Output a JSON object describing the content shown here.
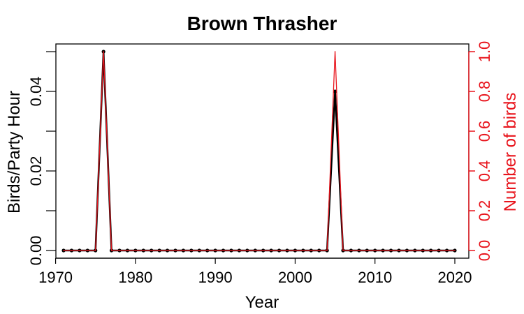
{
  "chart_data": {
    "type": "line",
    "title": "Brown Thrasher",
    "xlabel": "Year",
    "ylabel": "Birds/Party Hour",
    "y2label": "Number of birds",
    "xlim": [
      1971,
      2020
    ],
    "ylim": [
      0,
      0.05
    ],
    "y2lim": [
      0,
      1.0
    ],
    "xticks": [
      "1970",
      "1980",
      "1990",
      "2000",
      "2010",
      "2020"
    ],
    "yticks": [
      "0.00",
      "0.02",
      "0.04"
    ],
    "y2ticks": [
      "0.0",
      "0.2",
      "0.4",
      "0.6",
      "0.8",
      "1.0"
    ],
    "grid": false,
    "series": [
      {
        "axis": "left",
        "color": "#000000",
        "points": [
          [
            1971,
            0
          ],
          [
            1972,
            0
          ],
          [
            1973,
            0
          ],
          [
            1974,
            0
          ],
          [
            1975,
            0
          ],
          [
            1976,
            0.05
          ],
          [
            1977,
            0
          ],
          [
            1978,
            0
          ],
          [
            1979,
            0
          ],
          [
            1980,
            0
          ],
          [
            1981,
            0
          ],
          [
            1982,
            0
          ],
          [
            1983,
            0
          ],
          [
            1984,
            0
          ],
          [
            1985,
            0
          ],
          [
            1986,
            0
          ],
          [
            1987,
            0
          ],
          [
            1988,
            0
          ],
          [
            1989,
            0
          ],
          [
            1990,
            0
          ],
          [
            1991,
            0
          ],
          [
            1992,
            0
          ],
          [
            1993,
            0
          ],
          [
            1994,
            0
          ],
          [
            1995,
            0
          ],
          [
            1996,
            0
          ],
          [
            1997,
            0
          ],
          [
            1998,
            0
          ],
          [
            1999,
            0
          ],
          [
            2000,
            0
          ],
          [
            2001,
            0
          ],
          [
            2002,
            0
          ],
          [
            2003,
            0
          ],
          [
            2004,
            0
          ],
          [
            2005,
            0.04
          ],
          [
            2006,
            0
          ],
          [
            2007,
            0
          ],
          [
            2008,
            0
          ],
          [
            2009,
            0
          ],
          [
            2010,
            0
          ],
          [
            2011,
            0
          ],
          [
            2012,
            0
          ],
          [
            2013,
            0
          ],
          [
            2014,
            0
          ],
          [
            2015,
            0
          ],
          [
            2016,
            0
          ],
          [
            2017,
            0
          ],
          [
            2018,
            0
          ],
          [
            2019,
            0
          ],
          [
            2020,
            0
          ]
        ]
      },
      {
        "axis": "right",
        "color": "#e8141c",
        "points": [
          [
            1971,
            0
          ],
          [
            1972,
            0
          ],
          [
            1973,
            0
          ],
          [
            1974,
            0
          ],
          [
            1975,
            0
          ],
          [
            1976,
            1
          ],
          [
            1977,
            0
          ],
          [
            1978,
            0
          ],
          [
            1979,
            0
          ],
          [
            1980,
            0
          ],
          [
            1981,
            0
          ],
          [
            1982,
            0
          ],
          [
            1983,
            0
          ],
          [
            1984,
            0
          ],
          [
            1985,
            0
          ],
          [
            1986,
            0
          ],
          [
            1987,
            0
          ],
          [
            1988,
            0
          ],
          [
            1989,
            0
          ],
          [
            1990,
            0
          ],
          [
            1991,
            0
          ],
          [
            1992,
            0
          ],
          [
            1993,
            0
          ],
          [
            1994,
            0
          ],
          [
            1995,
            0
          ],
          [
            1996,
            0
          ],
          [
            1997,
            0
          ],
          [
            1998,
            0
          ],
          [
            1999,
            0
          ],
          [
            2000,
            0
          ],
          [
            2001,
            0
          ],
          [
            2002,
            0
          ],
          [
            2003,
            0
          ],
          [
            2004,
            0
          ],
          [
            2005,
            1
          ],
          [
            2006,
            0
          ],
          [
            2007,
            0
          ],
          [
            2008,
            0
          ],
          [
            2009,
            0
          ],
          [
            2010,
            0
          ],
          [
            2011,
            0
          ],
          [
            2012,
            0
          ],
          [
            2013,
            0
          ],
          [
            2014,
            0
          ],
          [
            2015,
            0
          ],
          [
            2016,
            0
          ],
          [
            2017,
            0
          ],
          [
            2018,
            0
          ],
          [
            2019,
            0
          ],
          [
            2020,
            0
          ]
        ]
      }
    ]
  }
}
